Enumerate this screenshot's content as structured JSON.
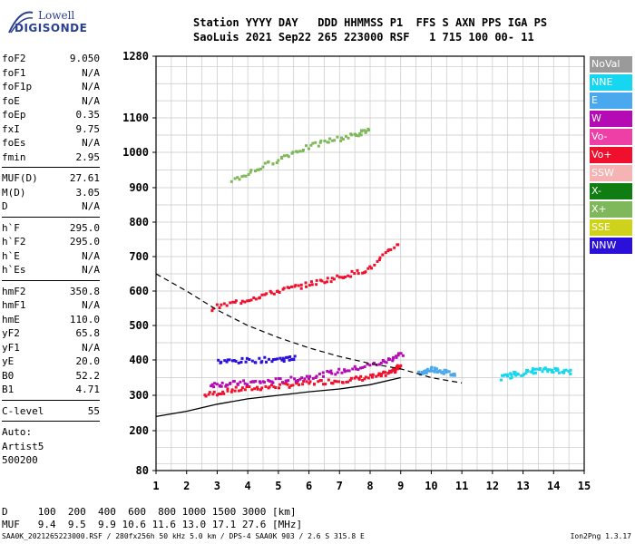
{
  "logo": {
    "brand": "Lowell",
    "product": "DIGISONDE"
  },
  "header": {
    "line1": "Station YYYY DAY   DDD HHMMSS P1  FFS S AXN PPS IGA PS",
    "line2": "SaoLuis 2021 Sep22 265 223000 RSF   1 715 100 00- 11"
  },
  "params_a": [
    {
      "label": "foF2",
      "value": "9.050"
    },
    {
      "label": "foF1",
      "value": "N/A"
    },
    {
      "label": "foF1p",
      "value": "N/A"
    },
    {
      "label": "foE",
      "value": "N/A"
    },
    {
      "label": "foEp",
      "value": "0.35"
    },
    {
      "label": "fxI",
      "value": "9.75"
    },
    {
      "label": "foEs",
      "value": "N/A"
    },
    {
      "label": "fmin",
      "value": "2.95"
    }
  ],
  "params_b": [
    {
      "label": "MUF(D)",
      "value": "27.61"
    },
    {
      "label": "M(D)",
      "value": "3.05"
    },
    {
      "label": "D",
      "value": "N/A"
    }
  ],
  "params_c": [
    {
      "label": "h`F",
      "value": "295.0"
    },
    {
      "label": "h`F2",
      "value": "295.0"
    },
    {
      "label": "h`E",
      "value": "N/A"
    },
    {
      "label": "h`Es",
      "value": "N/A"
    }
  ],
  "params_d": [
    {
      "label": "hmF2",
      "value": "350.8"
    },
    {
      "label": "hmF1",
      "value": "N/A"
    },
    {
      "label": "hmE",
      "value": "110.0"
    },
    {
      "label": "yF2",
      "value": "65.8"
    },
    {
      "label": "yF1",
      "value": "N/A"
    },
    {
      "label": "yE",
      "value": "20.0"
    },
    {
      "label": "B0",
      "value": "52.2"
    },
    {
      "label": "B1",
      "value": "4.71"
    }
  ],
  "params_e": [
    {
      "label": "C-level",
      "value": "55"
    }
  ],
  "auto_info": [
    "Auto:",
    "Artist5",
    "500200"
  ],
  "legend": [
    {
      "label": "NoVal",
      "color": "#9a9a9a"
    },
    {
      "label": "NNE",
      "color": "#16d6f0"
    },
    {
      "label": "E",
      "color": "#4aa8ef"
    },
    {
      "label": "W",
      "color": "#b40bb4"
    },
    {
      "label": "Vo-",
      "color": "#ee3fa6"
    },
    {
      "label": "Vo+",
      "color": "#f0102e"
    },
    {
      "label": "SSW",
      "color": "#f5b3b3"
    },
    {
      "label": "X-",
      "color": "#0f7d12"
    },
    {
      "label": "X+",
      "color": "#7fb85a"
    },
    {
      "label": "SSE",
      "color": "#cfd21a"
    },
    {
      "label": "NNW",
      "color": "#2a10d8"
    }
  ],
  "footer": {
    "d_line": "D     100  200  400  600  800 1000 1500 3000 [km]",
    "muf_line": "MUF   9.4  9.5  9.9 10.6 11.6 13.0 17.1 27.6 [MHz]",
    "credit": "SAA0K_2021265223000.RSF / 280fx256h 50 kHz 5.0 km / DPS-4 SAA0K 903 / 2.6 S 315.8 E",
    "version": "Ion2Png 1.3.17"
  },
  "chart_data": {
    "type": "scatter",
    "title": "",
    "xlabel": "",
    "ylabel": "",
    "x_ticks": [
      1,
      2,
      3,
      4,
      5,
      6,
      7,
      8,
      9,
      10,
      11,
      12,
      13,
      14,
      15
    ],
    "xlim": [
      1,
      15
    ],
    "y_ticks": [
      80,
      200,
      300,
      400,
      500,
      600,
      700,
      800,
      900,
      1000,
      1100,
      1280
    ],
    "ylim": [
      80,
      1280
    ],
    "y_scale": "nonlinear",
    "grid": true,
    "legend_placement": "right",
    "traces": [
      {
        "id": "f2-o-trace",
        "color": "#f0102e",
        "points": [
          [
            2.6,
            300
          ],
          [
            3.5,
            315
          ],
          [
            4.5,
            322
          ],
          [
            5.5,
            330
          ],
          [
            6.5,
            338
          ],
          [
            7.5,
            345
          ],
          [
            8.3,
            355
          ],
          [
            8.8,
            370
          ],
          [
            9.0,
            385
          ]
        ]
      },
      {
        "id": "f2-x-trace",
        "color": "#b40bb4",
        "points": [
          [
            2.8,
            330
          ],
          [
            3.5,
            333
          ],
          [
            4.5,
            338
          ],
          [
            5.5,
            345
          ],
          [
            6.5,
            360
          ],
          [
            7.5,
            375
          ],
          [
            8.5,
            395
          ],
          [
            9.1,
            420
          ]
        ]
      },
      {
        "id": "f2-nnw-trace",
        "color": "#2a10d8",
        "points": [
          [
            3.0,
            395
          ],
          [
            4.0,
            398
          ],
          [
            5.0,
            402
          ],
          [
            5.6,
            405
          ]
        ]
      },
      {
        "id": "second-hop-trace",
        "color": "#f0102e",
        "points": [
          [
            2.8,
            550
          ],
          [
            4.0,
            575
          ],
          [
            5.0,
            600
          ],
          [
            6.0,
            620
          ],
          [
            7.0,
            640
          ],
          [
            8.0,
            665
          ],
          [
            9.0,
            745
          ]
        ]
      },
      {
        "id": "third-hop-trace",
        "color": "#7fb85a",
        "points": [
          [
            3.5,
            920
          ],
          [
            4.5,
            960
          ],
          [
            5.5,
            1000
          ],
          [
            6.5,
            1030
          ],
          [
            7.5,
            1050
          ],
          [
            8.0,
            1065
          ]
        ]
      },
      {
        "id": "spread-f-cluster-a",
        "color": "#16d6f0",
        "points": [
          [
            12.3,
            350
          ],
          [
            12.8,
            360
          ],
          [
            13.4,
            370
          ],
          [
            14.0,
            372
          ],
          [
            14.6,
            365
          ]
        ]
      },
      {
        "id": "spread-f-cluster-b",
        "color": "#4aa8ef",
        "points": [
          [
            9.6,
            360
          ],
          [
            10.0,
            375
          ],
          [
            10.4,
            368
          ],
          [
            10.8,
            355
          ]
        ]
      }
    ],
    "profile_curve": [
      [
        1,
        240
      ],
      [
        2,
        255
      ],
      [
        3,
        275
      ],
      [
        4,
        290
      ],
      [
        5,
        300
      ],
      [
        6,
        310
      ],
      [
        7,
        318
      ],
      [
        8,
        330
      ],
      [
        9,
        350
      ]
    ],
    "dashed_curve": [
      [
        1,
        650
      ],
      [
        2,
        600
      ],
      [
        3,
        545
      ],
      [
        4,
        500
      ],
      [
        5,
        465
      ],
      [
        6,
        435
      ],
      [
        7,
        410
      ],
      [
        8,
        390
      ],
      [
        9,
        375
      ],
      [
        10,
        350
      ],
      [
        11,
        335
      ]
    ]
  }
}
